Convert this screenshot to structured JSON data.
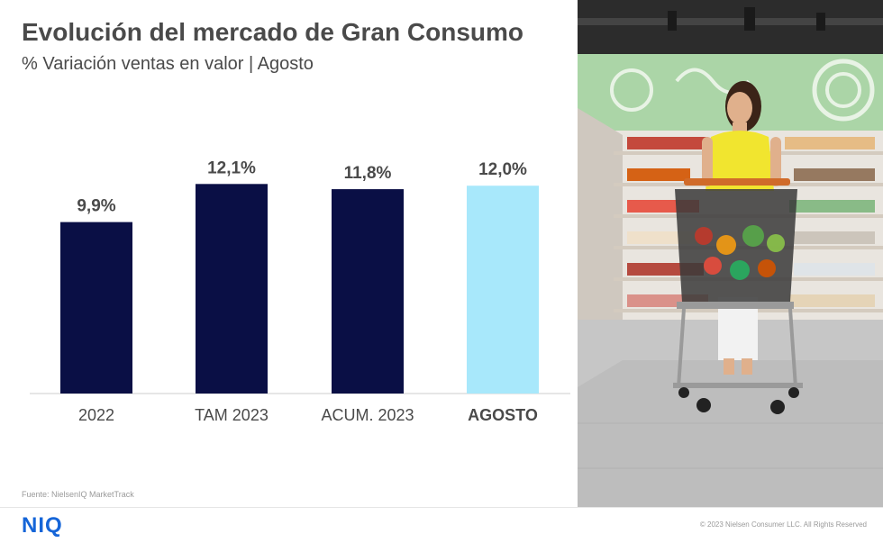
{
  "header": {
    "title": "Evolución del mercado de Gran Consumo",
    "subtitle": "% Variación ventas en valor | Agosto"
  },
  "chart_data": {
    "type": "bar",
    "title": "Evolución del mercado de Gran Consumo",
    "subtitle": "% Variación ventas en valor | Agosto",
    "xlabel": "",
    "ylabel": "",
    "ylim": [
      0,
      13
    ],
    "grid": false,
    "categories": [
      "2022",
      "TAM 2023",
      "ACUM. 2023",
      "AGOSTO"
    ],
    "values": [
      9.9,
      12.1,
      11.8,
      12.0
    ],
    "value_labels": [
      "9,9%",
      "12,1%",
      "11,8%",
      "12,0%"
    ],
    "highlight_index": 3,
    "colors": {
      "bar": "#0a0f45",
      "highlight": "#a8e8fb",
      "axis": "#cccccc",
      "label": "#4a4a4a"
    }
  },
  "footer": {
    "source": "Fuente: NielsenIQ MarketTrack",
    "logo_text": "NIQ",
    "copyright": "© 2023 Nielsen Consumer LLC. All Rights Reserved"
  },
  "photo": {
    "description_icon": "supermarket-shopper-photo"
  }
}
